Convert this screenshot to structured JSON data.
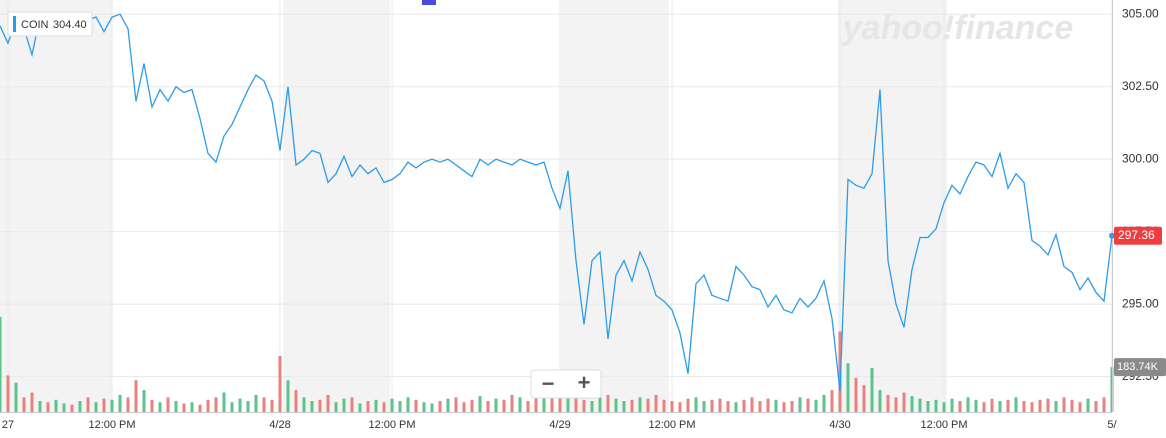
{
  "chart_data": {
    "type": "line",
    "symbol": "COIN",
    "symbol_value": "304.40",
    "watermark": "yahoo!finance",
    "zoom_out": "−",
    "zoom_in": "+",
    "color": "#2c9ce8",
    "ylim": [
      291.28,
      305.49
    ],
    "yticks": [
      {
        "value": 292.5,
        "label": "292.50"
      },
      {
        "value": 295,
        "label": "295.00"
      },
      {
        "value": 297.5,
        "label": "297.50"
      },
      {
        "value": 300,
        "label": "300.00"
      },
      {
        "value": 302.5,
        "label": "302.50"
      },
      {
        "value": 305,
        "label": "305.00"
      }
    ],
    "xlim": [
      0,
      139
    ],
    "xticks": [
      {
        "value": 1,
        "label": "27"
      },
      {
        "value": 14,
        "label": "12:00 PM"
      },
      {
        "value": 35,
        "label": "4/28"
      },
      {
        "value": 49,
        "label": "12:00 PM"
      },
      {
        "value": 70,
        "label": "4/29"
      },
      {
        "value": 84,
        "label": "12:00 PM"
      },
      {
        "value": 105,
        "label": "4/30"
      },
      {
        "value": 118,
        "label": "12:00 PM"
      },
      {
        "value": 139,
        "label": "5/"
      }
    ],
    "grid": true,
    "last_price": {
      "value": 297.36,
      "label": "297.36"
    },
    "last_volume": {
      "value": 183.74,
      "label": "183.74K"
    },
    "values": [
      304.6,
      304.0,
      304.8,
      304.5,
      303.6,
      304.9,
      304.6,
      304.7,
      304.8,
      304.6,
      304.9,
      304.8,
      304.9,
      304.4,
      304.9,
      305.0,
      304.5,
      302.0,
      303.3,
      301.8,
      302.4,
      302.0,
      302.5,
      302.3,
      302.4,
      301.4,
      300.2,
      299.9,
      300.8,
      301.2,
      301.8,
      302.4,
      302.9,
      302.7,
      302.0,
      300.3,
      302.5,
      299.8,
      300.0,
      300.3,
      300.2,
      299.2,
      299.5,
      300.1,
      299.4,
      299.8,
      299.5,
      299.7,
      299.2,
      299.3,
      299.5,
      299.9,
      299.7,
      299.9,
      300.0,
      299.9,
      300.0,
      299.8,
      299.6,
      299.4,
      300.0,
      299.8,
      300.0,
      299.9,
      299.8,
      300.0,
      299.9,
      299.8,
      299.9,
      299.0,
      298.3,
      299.6,
      296.5,
      294.3,
      296.5,
      296.8,
      293.8,
      296.0,
      296.5,
      295.8,
      296.8,
      296.2,
      295.3,
      295.1,
      294.8,
      294.0,
      292.6,
      295.7,
      296.0,
      295.3,
      295.2,
      295.1,
      296.3,
      296.0,
      295.6,
      295.5,
      294.9,
      295.3,
      294.8,
      294.7,
      295.2,
      294.9,
      295.2,
      295.8,
      294.5,
      292.0,
      299.3,
      299.1,
      299.0,
      299.5,
      302.4,
      296.5,
      295.0,
      294.2,
      296.2,
      297.3,
      297.3,
      297.6,
      298.5,
      299.1,
      298.8,
      299.4,
      299.9,
      299.8,
      299.4,
      300.2,
      299.0,
      299.5,
      299.2,
      297.2,
      297.0,
      296.7,
      297.4,
      296.3,
      296.1,
      295.5,
      295.9,
      295.4,
      295.1,
      297.36
    ],
    "volume": {
      "y2lim": [
        0,
        410
      ],
      "up_color": "#5cc28e",
      "down_color": "#e8827e",
      "values": [
        390,
        150,
        120,
        60,
        80,
        45,
        40,
        50,
        35,
        30,
        45,
        60,
        40,
        55,
        50,
        70,
        60,
        130,
        90,
        50,
        40,
        60,
        45,
        35,
        40,
        30,
        50,
        60,
        80,
        40,
        55,
        45,
        70,
        60,
        50,
        230,
        130,
        90,
        60,
        45,
        50,
        70,
        40,
        55,
        60,
        35,
        45,
        50,
        40,
        55,
        45,
        60,
        50,
        40,
        35,
        45,
        55,
        60,
        40,
        50,
        65,
        45,
        55,
        50,
        70,
        60,
        45,
        80,
        75,
        90,
        65,
        70,
        55,
        50,
        45,
        60,
        70,
        55,
        45,
        50,
        60,
        55,
        70,
        50,
        45,
        40,
        55,
        60,
        45,
        50,
        55,
        45,
        40,
        50,
        60,
        45,
        55,
        50,
        40,
        45,
        60,
        55,
        50,
        70,
        90,
        330,
        200,
        140,
        110,
        180,
        90,
        70,
        60,
        80,
        65,
        55,
        45,
        50,
        40,
        55,
        45,
        60,
        50,
        40,
        55,
        45,
        50,
        60,
        45,
        40,
        50,
        55,
        45,
        60,
        50,
        40,
        55,
        45,
        60,
        183.74
      ]
    }
  }
}
